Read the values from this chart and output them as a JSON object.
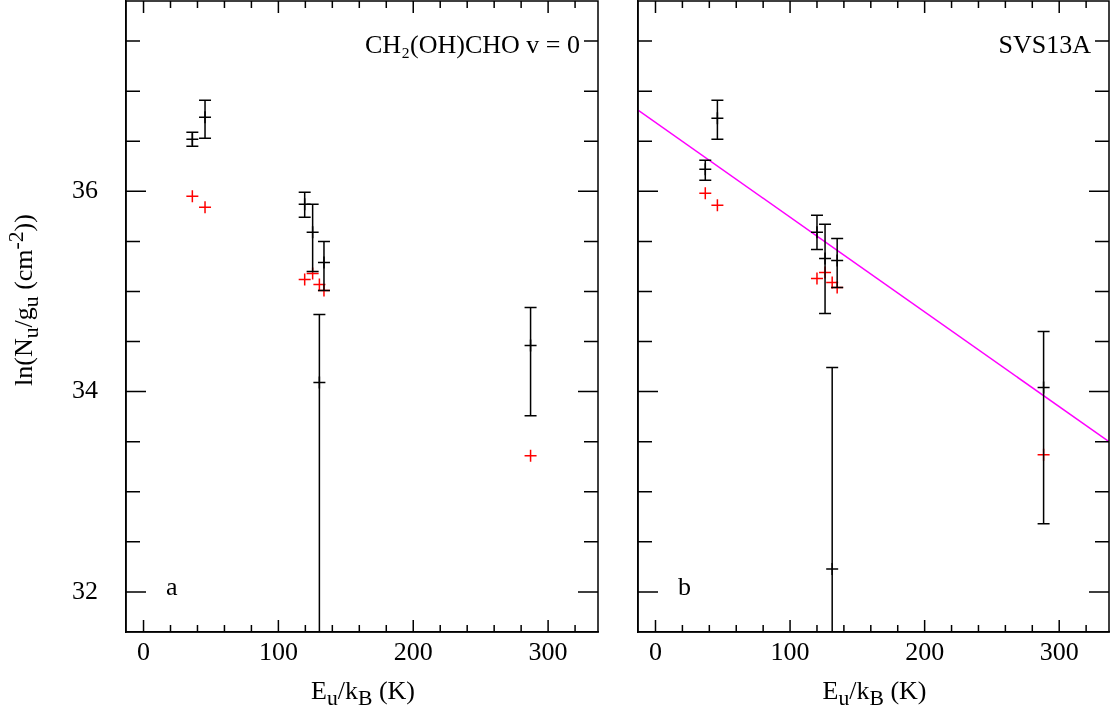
{
  "chart_data": [
    {
      "type": "scatter",
      "xlabel": "E$_{u}$/k$_{B}$ (K)",
      "ylabel": "ln(N$_{u}$/g$_{u}$ (cm$^{-2}$))",
      "xlim": [
        -13,
        337
      ],
      "ylim": [
        31.6,
        37.9
      ],
      "xticks": [
        0,
        {
          "value": 20,
          "label": null
        },
        {
          "value": 40,
          "label": null
        },
        {
          "value": 60,
          "label": null
        },
        {
          "value": 80,
          "label": null
        },
        100,
        {
          "value": 120,
          "label": null
        },
        {
          "value": 140,
          "label": null
        },
        {
          "value": 160,
          "label": null
        },
        {
          "value": 180,
          "label": null
        },
        200,
        {
          "value": 220,
          "label": null
        },
        {
          "value": 240,
          "label": null
        },
        {
          "value": 260,
          "label": null
        },
        {
          "value": 280,
          "label": null
        },
        300,
        {
          "value": 320,
          "label": null
        }
      ],
      "yticks": [
        32,
        {
          "value": 32.5,
          "label": null
        },
        {
          "value": 33,
          "label": null
        },
        {
          "value": 33.5,
          "label": null
        },
        34,
        {
          "value": 34.5,
          "label": null
        },
        {
          "value": 35,
          "label": null
        },
        {
          "value": 35.5,
          "label": null
        },
        36,
        {
          "value": 36.5,
          "label": null
        },
        {
          "value": 37,
          "label": null
        },
        {
          "value": 37.5,
          "label": null
        }
      ],
      "marker": "cross",
      "grid": false,
      "legend": false,
      "annotations": [
        "CH₂(OH)CHO v = 0",
        "a"
      ],
      "series": [
        {
          "color": "#000000",
          "x": [
            36.2,
            45.6,
            119.5,
            125.4,
            130.4,
            133.8,
            287
          ],
          "values": [
            36.52,
            36.74,
            35.87,
            35.59,
            34.09,
            35.29,
            34.46
          ],
          "errors": [
            [
              36.45,
              36.59
            ],
            [
              36.53,
              36.91
            ],
            [
              35.74,
              35.99
            ],
            [
              35.2,
              35.87
            ],
            [
              31.6,
              34.77
            ],
            [
              35.01,
              35.5
            ],
            [
              33.76,
              34.84
            ]
          ]
        },
        {
          "color": "#ff0000",
          "x": [
            36.2,
            45.6,
            119.5,
            125.4,
            130.4,
            133.8,
            287
          ],
          "values": [
            35.95,
            35.84,
            35.12,
            35.18,
            35.07,
            35.01,
            33.36
          ]
        }
      ]
    },
    {
      "type": "scatter",
      "xlabel": "E$_{u}$/k$_{B}$ (K)",
      "xlim": [
        -13,
        337
      ],
      "ylim": [
        31.6,
        37.9
      ],
      "tick_labels": "x",
      "xticks": [
        0,
        {
          "value": 20,
          "label": null
        },
        {
          "value": 40,
          "label": null
        },
        {
          "value": 60,
          "label": null
        },
        {
          "value": 80,
          "label": null
        },
        100,
        {
          "value": 120,
          "label": null
        },
        {
          "value": 140,
          "label": null
        },
        {
          "value": 160,
          "label": null
        },
        {
          "value": 180,
          "label": null
        },
        200,
        {
          "value": 220,
          "label": null
        },
        {
          "value": 240,
          "label": null
        },
        {
          "value": 260,
          "label": null
        },
        {
          "value": 280,
          "label": null
        },
        300,
        {
          "value": 320,
          "label": null
        }
      ],
      "yticks": [
        {
          "value": 32,
          "label": null
        },
        {
          "value": 32.5,
          "label": null
        },
        {
          "value": 33,
          "label": null
        },
        {
          "value": 33.5,
          "label": null
        },
        {
          "value": 34,
          "label": null
        },
        {
          "value": 34.5,
          "label": null
        },
        {
          "value": 35,
          "label": null
        },
        {
          "value": 35.5,
          "label": null
        },
        {
          "value": 36,
          "label": null
        },
        {
          "value": 36.5,
          "label": null
        },
        {
          "value": 37,
          "label": null
        },
        {
          "value": 37.5,
          "label": null
        }
      ],
      "marker": "cross",
      "grid": false,
      "legend": false,
      "annotations": [
        "SVS13A",
        "b"
      ],
      "series": [
        {
          "color": "#000000",
          "x": [
            37,
            46,
            120,
            126,
            131.3,
            135,
            288.4
          ],
          "values": [
            36.22,
            36.73,
            35.59,
            35.33,
            32.23,
            35.31,
            34.04
          ],
          "errors": [
            [
              36.11,
              36.31
            ],
            [
              36.52,
              36.91
            ],
            [
              35.42,
              35.76
            ],
            [
              34.78,
              35.67
            ],
            [
              31.6,
              34.24
            ],
            [
              35.04,
              35.53
            ],
            [
              32.68,
              34.6
            ]
          ]
        },
        {
          "color": "#ff0000",
          "x": [
            37,
            46,
            120,
            126,
            131.3,
            135,
            288.4
          ],
          "values": [
            35.98,
            35.86,
            35.13,
            35.19,
            35.09,
            35.04,
            33.37
          ]
        },
        {
          "type": "line",
          "color": "#ff00ff",
          "marker": "none",
          "x": [
            -13,
            337
          ],
          "values": [
            36.81,
            33.5
          ]
        }
      ]
    }
  ]
}
